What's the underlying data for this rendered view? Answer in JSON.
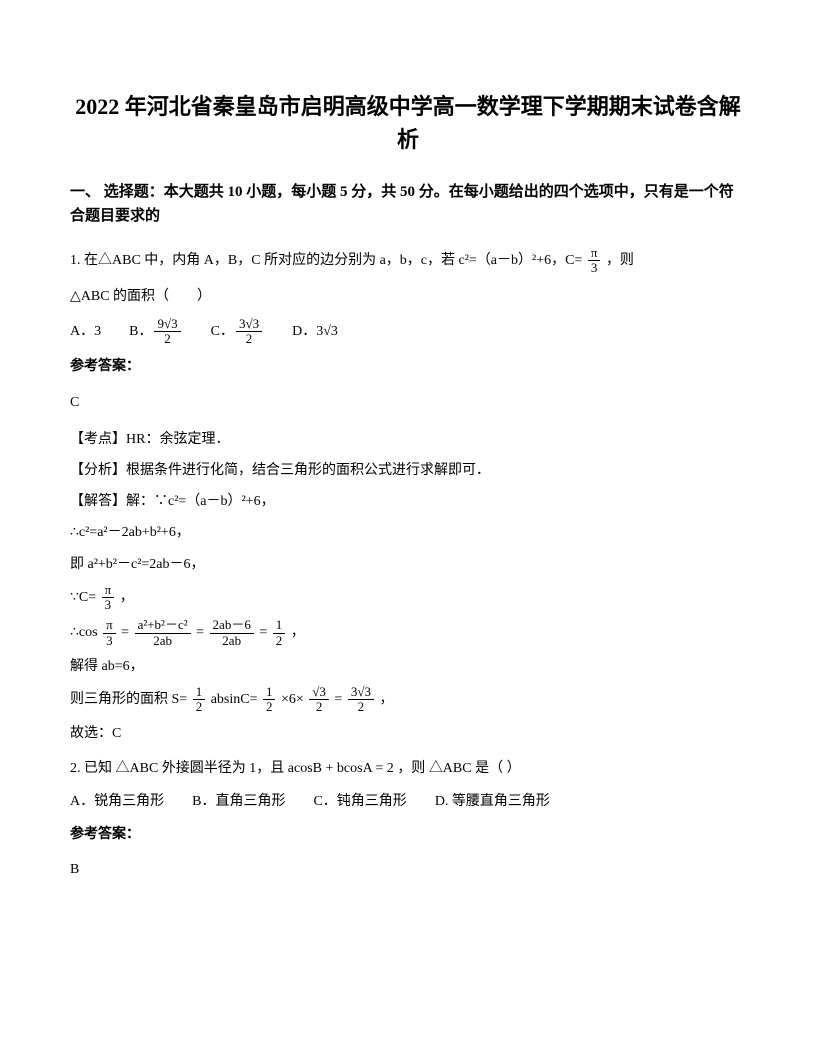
{
  "title": "2022 年河北省秦皇岛市启明高级中学高一数学理下学期期末试卷含解析",
  "section1": {
    "header": "一、 选择题：本大题共 10 小题，每小题 5 分，共 50 分。在每小题给出的四个选项中，只有是一个符合题目要求的"
  },
  "q1": {
    "line1_a": "1. 在△ABC 中，内角 A，B，C 所对应的边分别为 a，b，c，若 c²=（a－b）²+6，C=",
    "line1_frac_num": "π",
    "line1_frac_den": "3",
    "line1_b": "，则",
    "line2": "△ABC 的面积（　　）",
    "optA": "A．3",
    "optB": "B．",
    "optB_frac_num": "9√3",
    "optB_frac_den": "2",
    "optC": "C．",
    "optC_frac_num": "3√3",
    "optC_frac_den": "2",
    "optD": "D．3√3",
    "answer_label": "参考答案：",
    "answer_value": "C",
    "kaodian": "【考点】HR：余弦定理．",
    "fenxi": "【分析】根据条件进行化简，结合三角形的面积公式进行求解即可．",
    "jieda_label": "【解答】解：∵c²=（a－b）²+6，",
    "step1": "∴c²=a²－2ab+b²+6，",
    "step2": "即 a²+b²－c²=2ab－6，",
    "step3_a": "∵C=",
    "step3_frac_num": "π",
    "step3_frac_den": "3",
    "step3_b": "，",
    "step4_a": "∴cos",
    "step4_frac1_num": "π",
    "step4_frac1_den": "3",
    "step4_eq1": "=",
    "step4_frac2_num": "a²+b²－c²",
    "step4_frac2_den": "2ab",
    "step4_eq2": "=",
    "step4_frac3_num": "2ab－6",
    "step4_frac3_den": "2ab",
    "step4_eq3": "=",
    "step4_frac4_num": "1",
    "step4_frac4_den": "2",
    "step4_b": "，",
    "step5": "解得 ab=6，",
    "step6_a": "则三角形的面积 S=",
    "step6_frac1_num": "1",
    "step6_frac1_den": "2",
    "step6_mid1": "absinC=",
    "step6_frac2_num": "1",
    "step6_frac2_den": "2",
    "step6_mid2": "×6×",
    "step6_frac3_num": "√3",
    "step6_frac3_den": "2",
    "step6_mid3": "=",
    "step6_frac4_num": "3√3",
    "step6_frac4_den": "2",
    "step6_b": "，",
    "step7": "故选：C"
  },
  "q2": {
    "line1_a": "2. 已知",
    "tri1": "△ABC",
    "line1_b": "外接圆半径为 1，且",
    "eq": "acosB + bcosA = 2",
    "line1_c": "，则",
    "tri2": "△ABC",
    "line1_d": "是（  ）",
    "optA": "A．锐角三角形",
    "optB": "B．直角三角形",
    "optC": "C．钝角三角形",
    "optD": "D. 等腰直角三角形",
    "answer_label": "参考答案：",
    "answer_value": "B"
  }
}
